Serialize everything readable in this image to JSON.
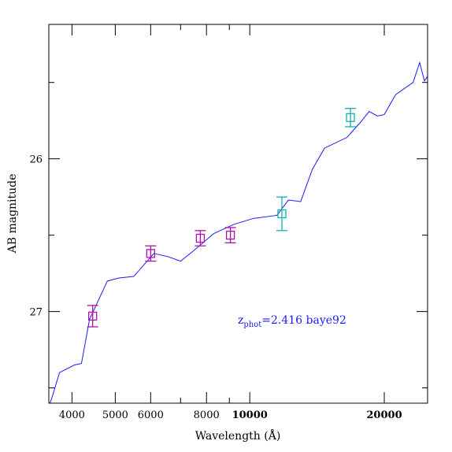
{
  "chart_data": {
    "type": "scatter",
    "xlabel": "Wavelength (Å)",
    "ylabel": "AB magnitude",
    "x_scale": "log",
    "y_inverted": true,
    "xlim": [
      3550,
      25000
    ],
    "ylim": [
      27.6,
      25.12
    ],
    "x_ticks_major": [
      4000,
      5000,
      6000,
      8000,
      10000,
      20000
    ],
    "x_tick_labels": [
      "4000",
      "5000",
      "6000",
      "8000",
      "10000",
      "20000"
    ],
    "x_tick_label_weights": [
      "normal",
      "normal",
      "normal",
      "normal",
      "bold",
      "bold"
    ],
    "x_ticks_minor": [
      7000,
      9000,
      30000
    ],
    "y_ticks_major": [
      26,
      27
    ],
    "y_tick_labels": [
      "26",
      "27"
    ],
    "y_ticks_minor": [
      25.5,
      26.5,
      27.5
    ],
    "annotation": {
      "prefix": "z",
      "subscript": "phot",
      "text": "=2.416 baye92",
      "x": 12700,
      "y": 27.07,
      "color": "#1a1aff"
    },
    "series": [
      {
        "type": "line",
        "color": "#1a1aff",
        "points": [
          [
            3550,
            27.62
          ],
          [
            3620,
            27.55
          ],
          [
            3750,
            27.4
          ],
          [
            4050,
            27.35
          ],
          [
            4200,
            27.34
          ],
          [
            4380,
            27.05
          ],
          [
            4800,
            26.8
          ],
          [
            5100,
            26.78
          ],
          [
            5500,
            26.77
          ],
          [
            6100,
            26.62
          ],
          [
            6550,
            26.64
          ],
          [
            7000,
            26.67
          ],
          [
            7500,
            26.6
          ],
          [
            8300,
            26.49
          ],
          [
            9200,
            26.43
          ],
          [
            10200,
            26.39
          ],
          [
            11500,
            26.37
          ],
          [
            12200,
            26.27
          ],
          [
            13000,
            26.28
          ],
          [
            13800,
            26.07
          ],
          [
            14700,
            25.93
          ],
          [
            16500,
            25.86
          ],
          [
            17700,
            25.76
          ],
          [
            18500,
            25.69
          ],
          [
            19300,
            25.72
          ],
          [
            20000,
            25.71
          ],
          [
            21200,
            25.58
          ],
          [
            23200,
            25.5
          ],
          [
            24000,
            25.37
          ],
          [
            24600,
            25.49
          ],
          [
            25000,
            25.46
          ]
        ]
      },
      {
        "type": "errorbar",
        "color": "#b010b0",
        "marker": "square-open",
        "points": [
          {
            "x": 4450,
            "y": 27.03,
            "err": 0.07
          },
          {
            "x": 6000,
            "y": 26.62,
            "err": 0.05
          },
          {
            "x": 7750,
            "y": 26.52,
            "err": 0.05
          },
          {
            "x": 9050,
            "y": 26.5,
            "err": 0.05
          }
        ]
      },
      {
        "type": "errorbar",
        "color": "#10b0b0",
        "marker": "square-open",
        "points": [
          {
            "x": 11800,
            "y": 26.36,
            "err": 0.11
          },
          {
            "x": 16800,
            "y": 25.73,
            "err": 0.06
          }
        ]
      }
    ]
  }
}
